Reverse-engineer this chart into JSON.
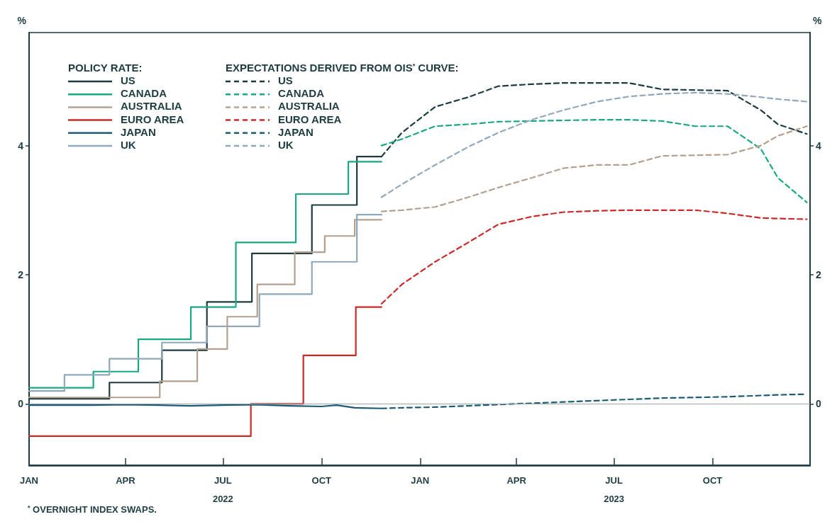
{
  "chart_data": {
    "type": "line",
    "legend_title": "POLICY RATE:",
    "ylabel": "%",
    "y2label": "%",
    "annotations": [
      "EXPECTATIONS DERIVED FROM OIS$^{*}$ CURVE:",
      "$^{*}$ OVERNIGHT INDEX SWAPS."
    ],
    "xlim": [
      "2022-01-01",
      "2023-12-31"
    ],
    "xticks": [
      {
        "value": "2022-01-01",
        "label": "JAN"
      },
      {
        "value": "2022-04-01",
        "label": "APR"
      },
      {
        "value": "2022-07-01",
        "label": "JUL\n2022"
      },
      {
        "value": "2022-10-01",
        "label": "OCT"
      },
      {
        "value": "2023-01-01",
        "label": "JAN"
      },
      {
        "value": "2023-04-01",
        "label": "APR"
      },
      {
        "value": "2023-07-01",
        "label": "JUL\n2023"
      },
      {
        "value": "2023-10-01",
        "label": "OCT"
      }
    ],
    "ylim": [
      -0.95,
      5.75
    ],
    "yticks": [
      0,
      2,
      4
    ],
    "y2lim": [
      -0.95,
      5.75
    ],
    "y2ticks": [
      0,
      2,
      4
    ],
    "grid": false,
    "legend": "top left",
    "ref_lines": [
      {
        "axis": "y",
        "value": 0,
        "color": "#9aa5a8"
      }
    ],
    "series": [
      {
        "name": "US",
        "type": "step",
        "line_style": "solid",
        "color": "#1d3c40",
        "x": [
          "2022-01-01",
          "2022-03-17",
          "2022-05-05",
          "2022-06-16",
          "2022-07-28",
          "2022-09-22",
          "2022-11-03",
          "2022-11-26"
        ],
        "values": [
          0.08,
          0.33,
          0.83,
          1.58,
          2.33,
          3.08,
          3.83,
          3.83
        ]
      },
      {
        "name": "CANADA",
        "type": "step",
        "line_style": "solid",
        "color": "#1aa882",
        "x": [
          "2022-01-01",
          "2022-03-02",
          "2022-04-13",
          "2022-06-01",
          "2022-07-13",
          "2022-09-07",
          "2022-10-26",
          "2022-11-26"
        ],
        "values": [
          0.25,
          0.5,
          1.0,
          1.5,
          2.5,
          3.25,
          3.75,
          3.75
        ]
      },
      {
        "name": "AUSTRALIA",
        "type": "step",
        "line_style": "solid",
        "color": "#b3a08e",
        "x": [
          "2022-01-01",
          "2022-05-03",
          "2022-06-07",
          "2022-07-05",
          "2022-08-02",
          "2022-09-06",
          "2022-10-04",
          "2022-11-01",
          "2022-11-26"
        ],
        "values": [
          0.1,
          0.35,
          0.85,
          1.35,
          1.85,
          2.35,
          2.6,
          2.85,
          2.85
        ]
      },
      {
        "name": "EURO AREA",
        "type": "step",
        "line_style": "solid",
        "color": "#cc2a28",
        "x": [
          "2022-01-01",
          "2022-07-27",
          "2022-09-14",
          "2022-11-02",
          "2022-11-26"
        ],
        "values": [
          -0.5,
          0.0,
          0.75,
          1.5,
          1.5
        ]
      },
      {
        "name": "JAPAN",
        "line_style": "solid",
        "color": "#1e5c75",
        "x": [
          "2022-01-01",
          "2022-02-01",
          "2022-03-01",
          "2022-04-01",
          "2022-05-01",
          "2022-06-01",
          "2022-07-01",
          "2022-08-01",
          "2022-09-01",
          "2022-10-01",
          "2022-10-15",
          "2022-11-01",
          "2022-11-26"
        ],
        "values": [
          -0.02,
          -0.02,
          -0.02,
          -0.01,
          -0.02,
          -0.03,
          -0.02,
          -0.01,
          -0.03,
          -0.04,
          -0.02,
          -0.06,
          -0.07
        ]
      },
      {
        "name": "UK",
        "type": "step",
        "line_style": "solid",
        "color": "#8fa8bb",
        "x": [
          "2022-01-01",
          "2022-02-03",
          "2022-03-17",
          "2022-05-05",
          "2022-06-16",
          "2022-08-04",
          "2022-09-22",
          "2022-11-03",
          "2022-11-26"
        ],
        "values": [
          0.2,
          0.45,
          0.7,
          0.95,
          1.2,
          1.7,
          2.2,
          2.93,
          2.93
        ]
      },
      {
        "name": "US",
        "type": "line",
        "line_style": "dashed",
        "color": "#1d3c40",
        "x": [
          "2022-11-26",
          "2022-12-15",
          "2023-01-15",
          "2023-02-15",
          "2023-03-15",
          "2023-04-15",
          "2023-05-15",
          "2023-06-15",
          "2023-07-15",
          "2023-08-15",
          "2023-09-15",
          "2023-10-15",
          "2023-11-15",
          "2023-12-01",
          "2023-12-28"
        ],
        "values": [
          3.83,
          4.2,
          4.6,
          4.75,
          4.92,
          4.95,
          4.97,
          4.97,
          4.97,
          4.87,
          4.86,
          4.85,
          4.55,
          4.33,
          4.18
        ]
      },
      {
        "name": "CANADA",
        "type": "line",
        "line_style": "dashed",
        "color": "#1aa882",
        "x": [
          "2022-11-26",
          "2022-12-15",
          "2023-01-15",
          "2023-02-15",
          "2023-03-15",
          "2023-04-15",
          "2023-05-15",
          "2023-06-15",
          "2023-07-15",
          "2023-08-15",
          "2023-09-15",
          "2023-10-15",
          "2023-11-15",
          "2023-12-01",
          "2023-12-28"
        ],
        "values": [
          4.0,
          4.1,
          4.3,
          4.33,
          4.37,
          4.38,
          4.39,
          4.4,
          4.4,
          4.38,
          4.3,
          4.3,
          3.95,
          3.5,
          3.12
        ]
      },
      {
        "name": "AUSTRALIA",
        "type": "line",
        "line_style": "dashed",
        "color": "#b3a08e",
        "x": [
          "2022-11-26",
          "2022-12-15",
          "2023-01-15",
          "2023-02-15",
          "2023-03-15",
          "2023-04-15",
          "2023-05-15",
          "2023-06-15",
          "2023-07-15",
          "2023-08-15",
          "2023-09-15",
          "2023-10-15",
          "2023-11-15",
          "2023-12-01",
          "2023-12-28"
        ],
        "values": [
          2.98,
          3.0,
          3.05,
          3.2,
          3.35,
          3.5,
          3.65,
          3.7,
          3.7,
          3.84,
          3.85,
          3.86,
          4.0,
          4.15,
          4.3
        ]
      },
      {
        "name": "EURO AREA",
        "type": "line",
        "line_style": "dashed",
        "color": "#cc2a28",
        "x": [
          "2022-11-26",
          "2022-12-15",
          "2023-01-15",
          "2023-02-15",
          "2023-03-15",
          "2023-04-15",
          "2023-05-15",
          "2023-06-15",
          "2023-07-15",
          "2023-08-15",
          "2023-09-15",
          "2023-10-15",
          "2023-11-15",
          "2023-12-01",
          "2023-12-28"
        ],
        "values": [
          1.55,
          1.85,
          2.2,
          2.5,
          2.78,
          2.9,
          2.97,
          2.99,
          3.0,
          3.0,
          3.0,
          2.95,
          2.88,
          2.87,
          2.86
        ]
      },
      {
        "name": "JAPAN",
        "type": "line",
        "line_style": "dashed",
        "color": "#1e5c75",
        "x": [
          "2022-11-26",
          "2022-12-15",
          "2023-01-15",
          "2023-02-15",
          "2023-03-15",
          "2023-04-15",
          "2023-05-15",
          "2023-06-15",
          "2023-07-15",
          "2023-08-15",
          "2023-09-15",
          "2023-10-15",
          "2023-11-15",
          "2023-12-01",
          "2023-12-28"
        ],
        "values": [
          -0.07,
          -0.06,
          -0.05,
          -0.03,
          -0.01,
          0.01,
          0.03,
          0.05,
          0.07,
          0.09,
          0.1,
          0.11,
          0.13,
          0.14,
          0.15
        ]
      },
      {
        "name": "UK",
        "type": "line",
        "line_style": "dashed",
        "color": "#8fa8bb",
        "x": [
          "2022-11-26",
          "2022-12-15",
          "2023-01-15",
          "2023-02-15",
          "2023-03-15",
          "2023-04-15",
          "2023-05-15",
          "2023-06-15",
          "2023-07-15",
          "2023-08-15",
          "2023-09-15",
          "2023-10-15",
          "2023-11-15",
          "2023-12-01",
          "2023-12-28"
        ],
        "values": [
          3.2,
          3.4,
          3.7,
          3.98,
          4.2,
          4.4,
          4.55,
          4.68,
          4.76,
          4.8,
          4.82,
          4.8,
          4.75,
          4.72,
          4.68
        ]
      }
    ]
  }
}
